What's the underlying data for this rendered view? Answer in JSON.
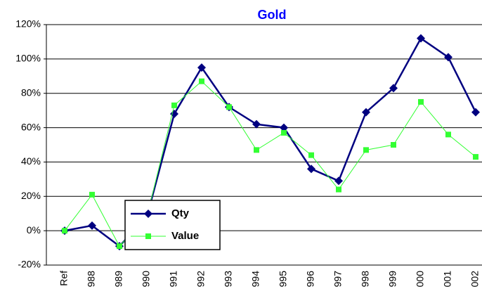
{
  "chart_data": {
    "type": "line",
    "title": "Gold",
    "categories": [
      "Ref",
      "988",
      "989",
      "990",
      "991",
      "992",
      "993",
      "994",
      "995",
      "996",
      "997",
      "998",
      "999",
      "000",
      "001",
      "002"
    ],
    "series": [
      {
        "name": "Qty",
        "color": "#000080",
        "values": [
          0,
          3,
          -9,
          8,
          68,
          95,
          72,
          62,
          60,
          36,
          29,
          69,
          83,
          112,
          101,
          69
        ]
      },
      {
        "name": "Value",
        "color": "#33ff33",
        "values": [
          0,
          21,
          -9,
          8,
          73,
          87,
          72,
          47,
          57,
          44,
          24,
          47,
          50,
          75,
          56,
          43
        ]
      }
    ],
    "ylim": [
      -20,
      120
    ],
    "yticks": [
      {
        "value": -20,
        "label": "-20%"
      },
      {
        "value": 0,
        "label": "0%"
      },
      {
        "value": 20,
        "label": "20%"
      },
      {
        "value": 40,
        "label": "40%"
      },
      {
        "value": 60,
        "label": "60%"
      },
      {
        "value": 80,
        "label": "80%"
      },
      {
        "value": 100,
        "label": "100%"
      },
      {
        "value": 120,
        "label": "120%"
      }
    ],
    "grid": true
  }
}
